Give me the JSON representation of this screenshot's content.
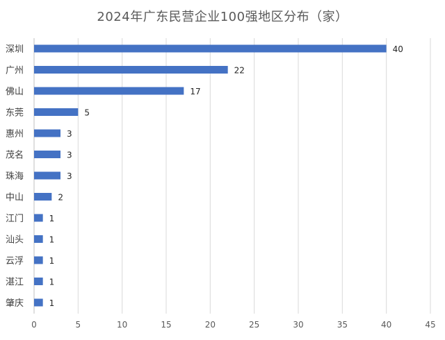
{
  "chart_data": {
    "type": "bar",
    "orientation": "horizontal",
    "title": "2024年广东民营企业100强地区分布（家）",
    "categories": [
      "深圳",
      "广州",
      "佛山",
      "东莞",
      "惠州",
      "茂名",
      "珠海",
      "中山",
      "江门",
      "汕头",
      "云浮",
      "湛江",
      "肇庆"
    ],
    "values": [
      40,
      22,
      17,
      5,
      3,
      3,
      3,
      2,
      1,
      1,
      1,
      1,
      1
    ],
    "xlim": [
      0,
      45
    ],
    "xticks": [
      0,
      5,
      10,
      15,
      20,
      25,
      30,
      35,
      40,
      45
    ],
    "xlabel": "",
    "ylabel": "",
    "grid": true,
    "legend": "none",
    "data_labels": true,
    "bar_color": "#4472c4"
  }
}
